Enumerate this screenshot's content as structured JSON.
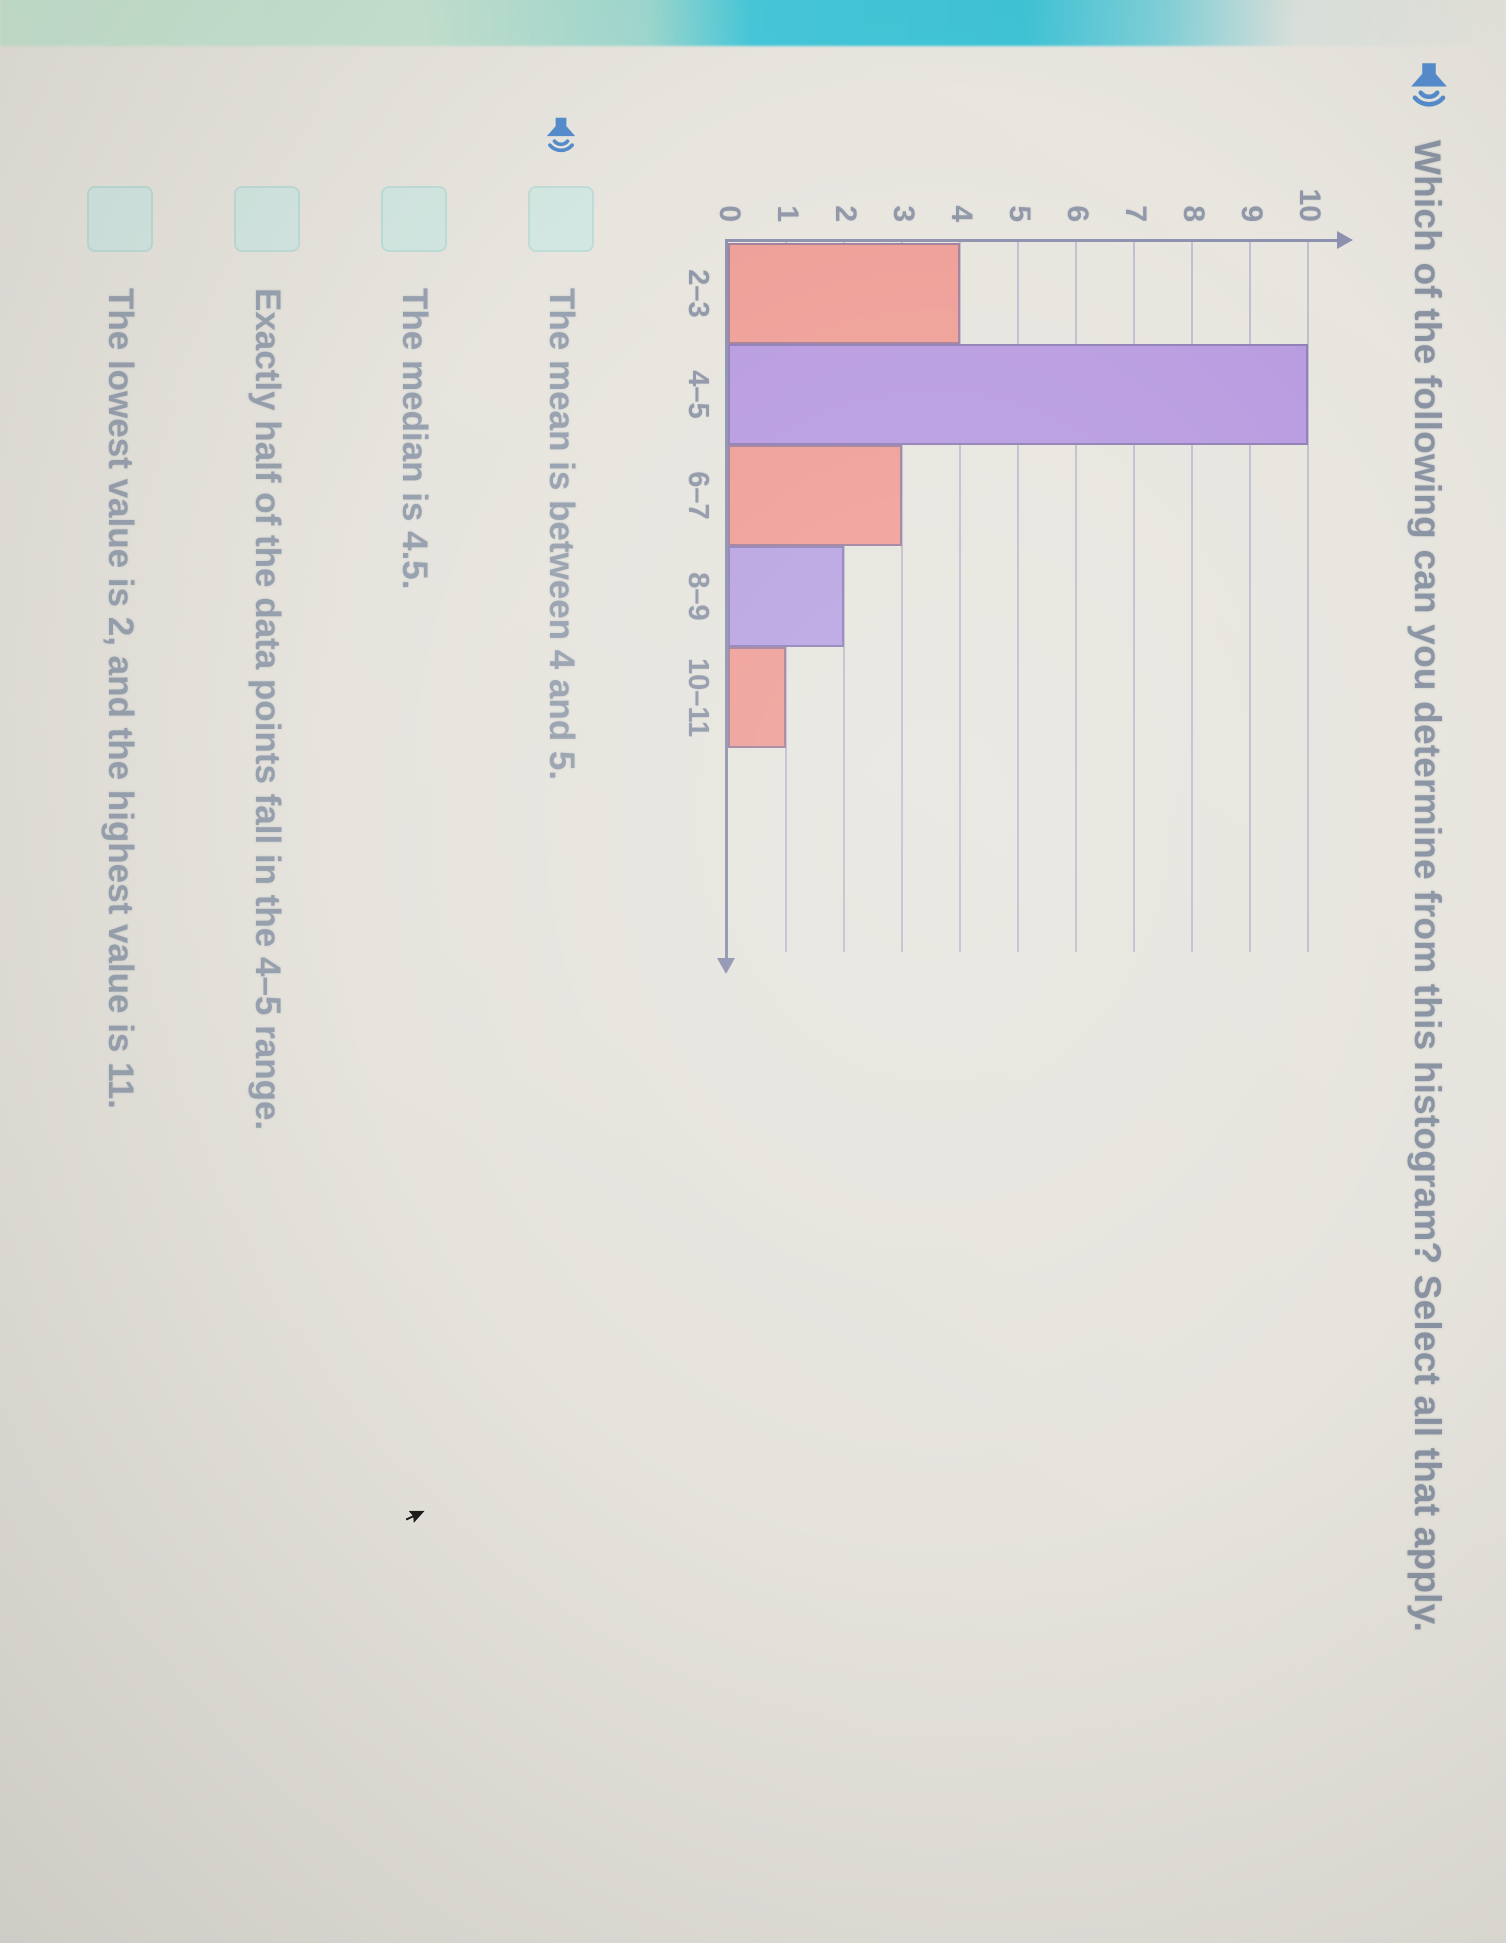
{
  "question": {
    "speaker_icon": "speaker-icon",
    "text": "Which of the following can you determine from this histogram? Select all that apply."
  },
  "chart_data": {
    "type": "bar",
    "subtype": "histogram",
    "title": "",
    "xlabel": "",
    "ylabel": "",
    "categories": [
      "2–3",
      "4–5",
      "6–7",
      "8–9",
      "10–11"
    ],
    "values": [
      4,
      10,
      3,
      2,
      1
    ],
    "bar_colors": [
      "#ee9f97",
      "#b89be0",
      "#ee9f97",
      "#b9a3e2",
      "#ee9f97"
    ],
    "ylim": [
      0,
      10
    ],
    "yticks": [
      0,
      1,
      2,
      3,
      4,
      5,
      6,
      7,
      8,
      9,
      10
    ],
    "grid": true,
    "legend": false,
    "axis_arrows": [
      "y-top",
      "x-right"
    ]
  },
  "options": [
    {
      "label": "The mean is between 4 and 5.",
      "selected": false,
      "has_speaker": true
    },
    {
      "label": "The median is 4.5.",
      "selected": false,
      "has_speaker": false
    },
    {
      "label": "Exactly half of the data points fall in the 4–5 range.",
      "selected": false,
      "has_speaker": false
    },
    {
      "label": "The lowest value is 2, and the highest value is 11.",
      "selected": false,
      "has_speaker": false
    }
  ],
  "colors": {
    "background": "#e6e4dd",
    "edge_cyan": "#3fc3d6",
    "edge_mint": "#c6e3d1",
    "salmon_bar": "#ee9f97",
    "purple_bar": "#b89be0",
    "grid": "#b8b8ce",
    "axis": "#8e91ae",
    "question_text": "#8a93a2",
    "option_text": "#98a1af",
    "checkbox_fill": "#d3e7e2",
    "checkbox_border": "#c0dcd6",
    "speaker_blue": "#568ccd"
  }
}
